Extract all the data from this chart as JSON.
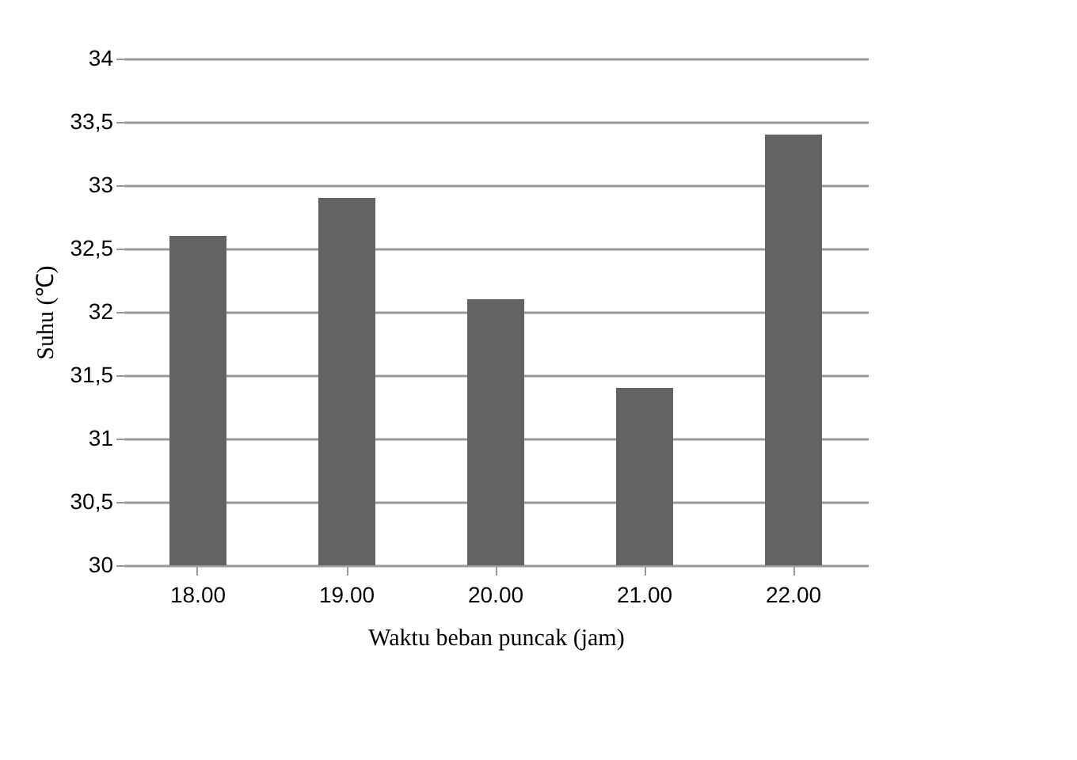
{
  "chart_data": {
    "type": "bar",
    "xlabel": "Waktu beban puncak (jam)",
    "ylabel": "Suhu (℃)",
    "categories": [
      "18.00",
      "19.00",
      "20.00",
      "21.00",
      "22.00"
    ],
    "values": [
      32.6,
      32.9,
      32.1,
      31.4,
      33.4
    ],
    "color": "#636363",
    "ylim": [
      30,
      34
    ],
    "yticks": [
      30,
      {
        "value": 30.5,
        "label": "30,5"
      },
      31,
      {
        "value": 31.5,
        "label": "31,5"
      },
      32,
      {
        "value": 32.5,
        "label": "32,5"
      },
      33,
      {
        "value": 33.5,
        "label": "33,5"
      },
      34
    ],
    "grid": "y"
  }
}
